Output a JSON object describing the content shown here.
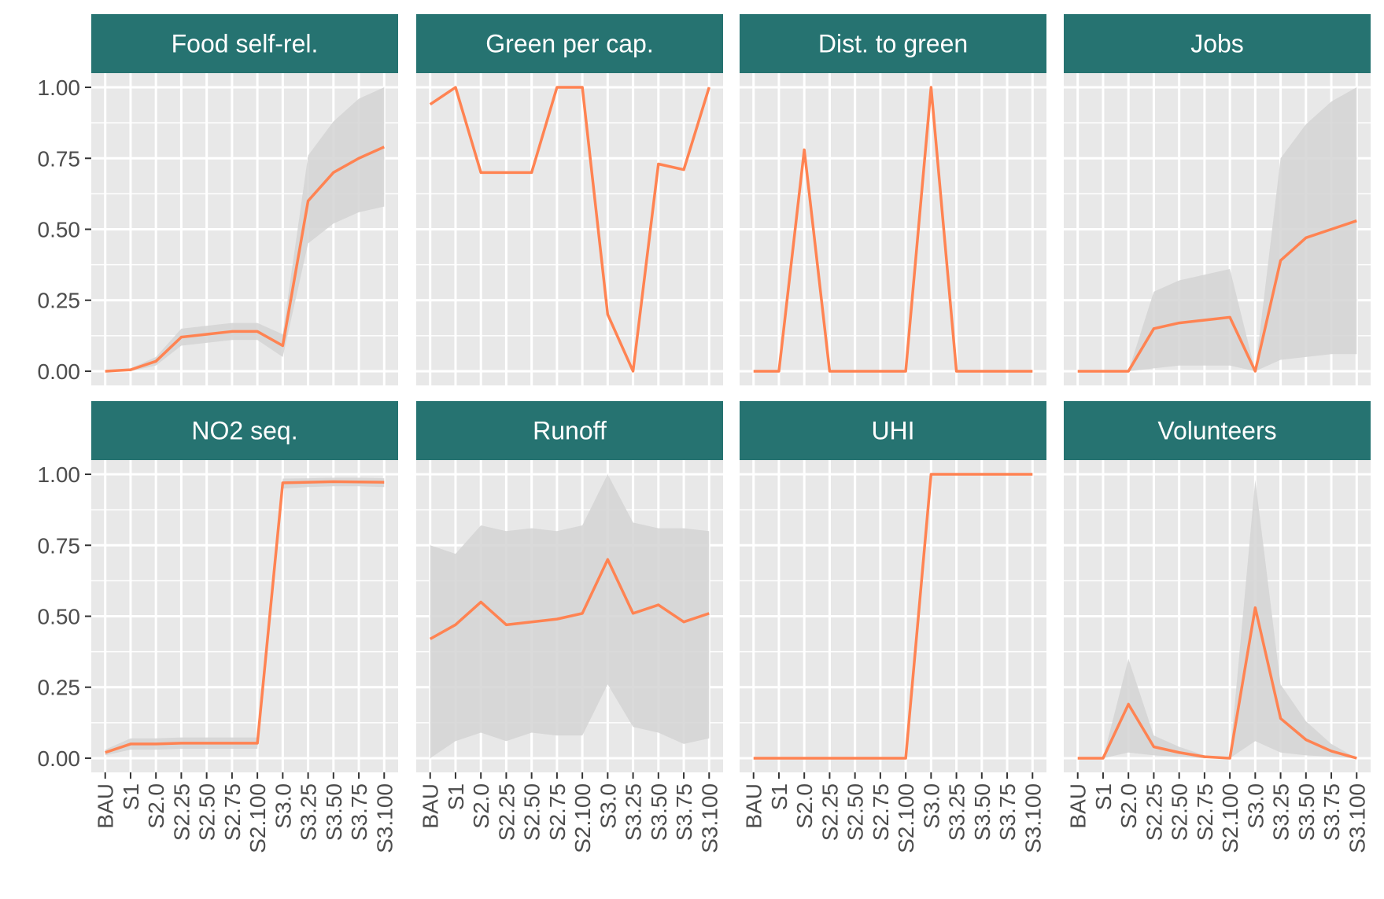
{
  "chart_data": {
    "type": "line",
    "categories": [
      "BAU",
      "S1",
      "S2.0",
      "S2.25",
      "S2.50",
      "S2.75",
      "S2.100",
      "S3.0",
      "S3.25",
      "S3.50",
      "S3.75",
      "S3.100"
    ],
    "y_ticks": [
      "0.00",
      "0.25",
      "0.50",
      "0.75",
      "1.00"
    ],
    "ylim": [
      -0.05,
      1.05
    ],
    "grid": true,
    "colors": {
      "line": "#FF8352",
      "band": "#D3D3D3",
      "panel_bg": "#E8E8E8",
      "strip_bg": "#267371"
    },
    "panels": [
      {
        "title": "Food self-rel.",
        "values": [
          0.0,
          0.005,
          0.035,
          0.12,
          0.13,
          0.14,
          0.14,
          0.09,
          0.6,
          0.7,
          0.75,
          0.79
        ],
        "lower": [
          0.0,
          0.0,
          0.02,
          0.09,
          0.1,
          0.11,
          0.11,
          0.05,
          0.45,
          0.52,
          0.56,
          0.58
        ],
        "upper": [
          0.0,
          0.01,
          0.05,
          0.15,
          0.16,
          0.17,
          0.17,
          0.13,
          0.76,
          0.88,
          0.96,
          1.0
        ]
      },
      {
        "title": "Green per cap.",
        "values": [
          0.94,
          1.0,
          0.7,
          0.7,
          0.7,
          1.0,
          1.0,
          0.2,
          0.0,
          0.73,
          0.71,
          1.0
        ],
        "lower": [
          0.94,
          1.0,
          0.7,
          0.7,
          0.7,
          1.0,
          1.0,
          0.2,
          0.0,
          0.73,
          0.71,
          1.0
        ],
        "upper": [
          0.94,
          1.0,
          0.7,
          0.7,
          0.7,
          1.0,
          1.0,
          0.2,
          0.0,
          0.73,
          0.71,
          1.0
        ]
      },
      {
        "title": "Dist. to green",
        "values": [
          0.0,
          0.0,
          0.78,
          0.0,
          0.0,
          0.0,
          0.0,
          1.0,
          0.0,
          0.0,
          0.0,
          0.0
        ],
        "lower": [
          0.0,
          0.0,
          0.78,
          0.0,
          0.0,
          0.0,
          0.0,
          1.0,
          0.0,
          0.0,
          0.0,
          0.0
        ],
        "upper": [
          0.0,
          0.0,
          0.78,
          0.0,
          0.0,
          0.0,
          0.0,
          1.0,
          0.0,
          0.0,
          0.0,
          0.0
        ]
      },
      {
        "title": "Jobs",
        "values": [
          0.0,
          0.0,
          0.0,
          0.15,
          0.17,
          0.18,
          0.19,
          0.0,
          0.39,
          0.47,
          0.5,
          0.53
        ],
        "lower": [
          0.0,
          0.0,
          0.0,
          0.01,
          0.02,
          0.02,
          0.02,
          0.0,
          0.04,
          0.05,
          0.06,
          0.06
        ],
        "upper": [
          0.0,
          0.0,
          0.0,
          0.28,
          0.32,
          0.34,
          0.36,
          0.0,
          0.75,
          0.87,
          0.95,
          1.0
        ]
      },
      {
        "title": "NO2 seq.",
        "values": [
          0.02,
          0.05,
          0.05,
          0.053,
          0.053,
          0.053,
          0.053,
          0.97,
          0.972,
          0.974,
          0.973,
          0.972
        ],
        "lower": [
          0.01,
          0.03,
          0.03,
          0.033,
          0.033,
          0.033,
          0.033,
          0.95,
          0.955,
          0.958,
          0.958,
          0.955
        ],
        "upper": [
          0.03,
          0.07,
          0.07,
          0.073,
          0.073,
          0.073,
          0.073,
          0.985,
          0.986,
          0.988,
          0.988,
          0.986
        ]
      },
      {
        "title": "Runoff",
        "values": [
          0.42,
          0.47,
          0.55,
          0.47,
          0.48,
          0.49,
          0.51,
          0.7,
          0.51,
          0.54,
          0.48,
          0.51
        ],
        "lower": [
          0.0,
          0.06,
          0.09,
          0.06,
          0.09,
          0.08,
          0.08,
          0.26,
          0.11,
          0.09,
          0.05,
          0.07
        ],
        "upper": [
          0.75,
          0.72,
          0.82,
          0.8,
          0.81,
          0.8,
          0.82,
          1.0,
          0.83,
          0.81,
          0.81,
          0.8
        ]
      },
      {
        "title": "UHI",
        "values": [
          0.0,
          0.0,
          0.0,
          0.0,
          0.0,
          0.0,
          0.0,
          1.0,
          1.0,
          1.0,
          1.0,
          1.0
        ],
        "lower": [
          0.0,
          0.0,
          0.0,
          0.0,
          0.0,
          0.0,
          0.0,
          1.0,
          1.0,
          1.0,
          1.0,
          1.0
        ],
        "upper": [
          0.0,
          0.0,
          0.0,
          0.0,
          0.0,
          0.0,
          0.0,
          1.0,
          1.0,
          1.0,
          1.0,
          1.0
        ]
      },
      {
        "title": "Volunteers",
        "values": [
          0.0,
          0.0,
          0.19,
          0.04,
          0.02,
          0.005,
          0.0,
          0.53,
          0.14,
          0.065,
          0.025,
          0.0
        ],
        "lower": [
          0.0,
          0.0,
          0.02,
          0.01,
          0.005,
          0.0,
          0.0,
          0.06,
          0.02,
          0.01,
          0.005,
          0.0
        ],
        "upper": [
          0.0,
          0.0,
          0.35,
          0.08,
          0.04,
          0.01,
          0.0,
          0.98,
          0.26,
          0.13,
          0.05,
          0.0
        ]
      }
    ]
  }
}
